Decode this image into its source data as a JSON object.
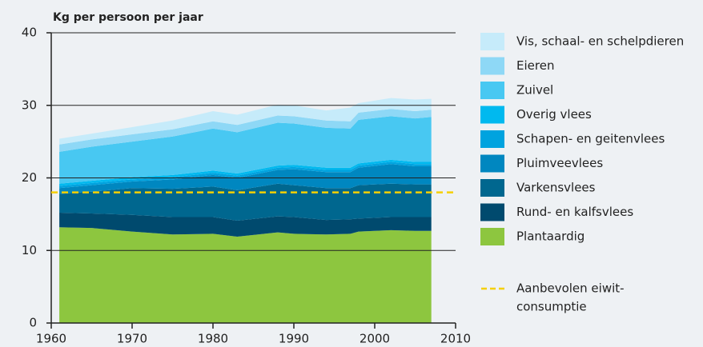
{
  "chart_data": {
    "type": "stacked_area",
    "y_label": "Kg per persoon per jaar",
    "x": [
      1961,
      1965,
      1970,
      1975,
      1980,
      1983,
      1988,
      1990,
      1994,
      1997,
      1998,
      2002,
      2005,
      2007
    ],
    "series": [
      {
        "name": "Vis, schaal- en schelpdieren",
        "color": "#c6ebfa",
        "values": [
          0.8,
          0.8,
          1.0,
          1.2,
          1.4,
          1.4,
          1.5,
          1.5,
          1.4,
          1.9,
          1.3,
          1.5,
          1.6,
          1.5
        ]
      },
      {
        "name": "Eieren",
        "color": "#8ed8f6",
        "values": [
          1.0,
          1.0,
          1.0,
          1.0,
          1.0,
          1.0,
          1.0,
          1.0,
          1.0,
          1.0,
          1.0,
          1.0,
          1.0,
          1.0
        ]
      },
      {
        "name": "Zuivel",
        "color": "#48c8f2",
        "values": [
          4.4,
          4.7,
          4.9,
          5.3,
          5.8,
          5.7,
          5.9,
          5.7,
          5.5,
          5.4,
          6.0,
          6.0,
          6.0,
          6.2
        ]
      },
      {
        "name": "Overig vlees",
        "color": "#00b9ef",
        "values": [
          0.3,
          0.3,
          0.3,
          0.3,
          0.3,
          0.3,
          0.3,
          0.3,
          0.3,
          0.3,
          0.3,
          0.3,
          0.3,
          0.3
        ]
      },
      {
        "name": "Schapen- en geitenvlees",
        "color": "#00a3df",
        "values": [
          0.3,
          0.3,
          0.3,
          0.3,
          0.3,
          0.3,
          0.3,
          0.3,
          0.3,
          0.3,
          0.3,
          0.3,
          0.3,
          0.3
        ]
      },
      {
        "name": "Pluimveevlees",
        "color": "#0087c0",
        "values": [
          0.8,
          0.9,
          0.9,
          1.3,
          1.6,
          1.7,
          1.9,
          2.2,
          2.2,
          2.2,
          2.4,
          2.7,
          2.5,
          2.5
        ]
      },
      {
        "name": "Varkensvlees",
        "color": "#00678f",
        "values": [
          2.6,
          3.0,
          3.7,
          3.9,
          4.2,
          4.2,
          4.5,
          4.4,
          4.4,
          4.3,
          4.6,
          4.6,
          4.5,
          4.5
        ]
      },
      {
        "name": "Rund- en kalfsvlees",
        "color": "#004a6e",
        "values": [
          2.0,
          2.0,
          2.3,
          2.4,
          2.3,
          2.2,
          2.2,
          2.3,
          2.0,
          2.0,
          1.8,
          1.8,
          1.9,
          1.9
        ]
      },
      {
        "name": "Plantaardig",
        "color": "#8dc63f",
        "values": [
          13.2,
          13.1,
          12.6,
          12.2,
          12.3,
          11.9,
          12.5,
          12.3,
          12.2,
          12.3,
          12.6,
          12.8,
          12.7,
          12.7
        ]
      }
    ],
    "reference_line": {
      "value": 18,
      "color": "#f5d000",
      "label": [
        "Aanbevolen eiwit-",
        "consumptie"
      ]
    },
    "xlim": [
      1960,
      2010
    ],
    "xticks": [
      1960,
      1970,
      1980,
      1990,
      2000,
      2010
    ],
    "ylim": [
      0,
      40
    ],
    "yticks": [
      0,
      10,
      20,
      30,
      40
    ],
    "grid": true
  }
}
